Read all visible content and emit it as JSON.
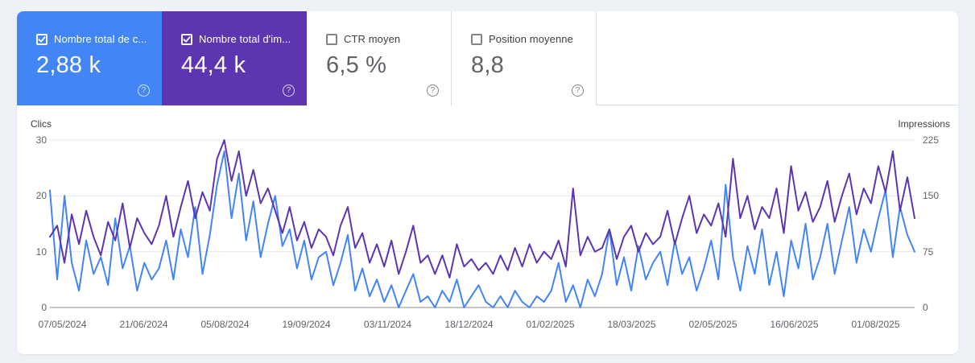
{
  "page": {
    "background": "#eef1f5"
  },
  "icons": {
    "help": "?"
  },
  "cards": [
    {
      "id": "total-clicks",
      "label": "Nombre total de c...",
      "value": "2,88 k",
      "checked": true,
      "background": "#4285f4",
      "text_color": "#ffffff"
    },
    {
      "id": "total-impressions",
      "label": "Nombre total d'im...",
      "value": "44,4 k",
      "checked": true,
      "background": "#5e35b1",
      "text_color": "#ffffff"
    },
    {
      "id": "average-ctr",
      "label": "CTR moyen",
      "value": "6,5 %",
      "checked": false,
      "background": "#ffffff",
      "text_color": "#5f6368"
    },
    {
      "id": "average-position",
      "label": "Position moyenne",
      "value": "8,8",
      "checked": false,
      "background": "#ffffff",
      "text_color": "#5f6368"
    }
  ],
  "chart_data": {
    "type": "line",
    "title": "",
    "grid": true,
    "y_left": {
      "title": "Clics",
      "ticks": [
        30,
        20,
        10,
        0
      ],
      "range": [
        0,
        30
      ]
    },
    "y_right": {
      "title": "Impressions",
      "ticks": [
        225,
        150,
        75,
        0
      ],
      "range": [
        0,
        225
      ]
    },
    "x_axis": {
      "labels": [
        "07/05/2024",
        "21/06/2024",
        "05/08/2024",
        "19/09/2024",
        "03/11/2024",
        "18/12/2024",
        "01/02/2025",
        "18/03/2025",
        "02/05/2025",
        "16/06/2025",
        "01/08/2025"
      ]
    },
    "series": [
      {
        "name": "Clics",
        "axis": "left",
        "color": "#4285f4",
        "values": [
          21,
          5,
          20,
          8,
          3,
          12,
          6,
          9,
          4,
          16,
          7,
          11,
          3,
          8,
          5,
          7,
          12,
          5,
          14,
          9,
          18,
          6,
          13,
          22,
          28,
          16,
          24,
          12,
          19,
          9,
          15,
          20,
          11,
          14,
          7,
          12,
          5,
          9,
          10,
          4,
          8,
          13,
          3,
          7,
          2,
          5,
          1,
          4,
          0,
          3,
          6,
          1,
          2,
          0,
          3,
          1,
          5,
          0,
          2,
          4,
          1,
          0,
          2,
          0,
          3,
          1,
          0,
          2,
          1,
          3,
          8,
          1,
          4,
          0,
          5,
          2,
          6,
          14,
          4,
          9,
          3,
          11,
          5,
          8,
          10,
          4,
          12,
          6,
          9,
          3,
          7,
          12,
          5,
          22,
          9,
          3,
          11,
          6,
          14,
          4,
          10,
          2,
          12,
          7,
          15,
          5,
          9,
          15,
          6,
          12,
          18,
          8,
          14,
          10,
          16,
          21,
          9,
          18,
          13,
          10
        ]
      },
      {
        "name": "Impressions",
        "axis": "right",
        "color": "#5e35b1",
        "values": [
          95,
          110,
          60,
          125,
          85,
          130,
          95,
          70,
          115,
          90,
          140,
          80,
          120,
          100,
          85,
          110,
          150,
          95,
          135,
          170,
          120,
          155,
          130,
          200,
          225,
          170,
          210,
          150,
          185,
          140,
          160,
          130,
          100,
          135,
          90,
          115,
          80,
          105,
          95,
          70,
          110,
          135,
          80,
          100,
          60,
          85,
          55,
          90,
          45,
          75,
          110,
          60,
          70,
          45,
          70,
          40,
          85,
          55,
          65,
          50,
          60,
          45,
          70,
          50,
          80,
          55,
          85,
          60,
          75,
          65,
          90,
          55,
          160,
          70,
          95,
          75,
          80,
          105,
          65,
          95,
          110,
          75,
          100,
          85,
          95,
          130,
          85,
          120,
          150,
          100,
          125,
          110,
          140,
          95,
          200,
          120,
          150,
          105,
          135,
          120,
          160,
          100,
          190,
          130,
          155,
          115,
          135,
          170,
          115,
          150,
          180,
          125,
          160,
          140,
          190,
          155,
          210,
          130,
          175,
          120
        ]
      }
    ]
  }
}
